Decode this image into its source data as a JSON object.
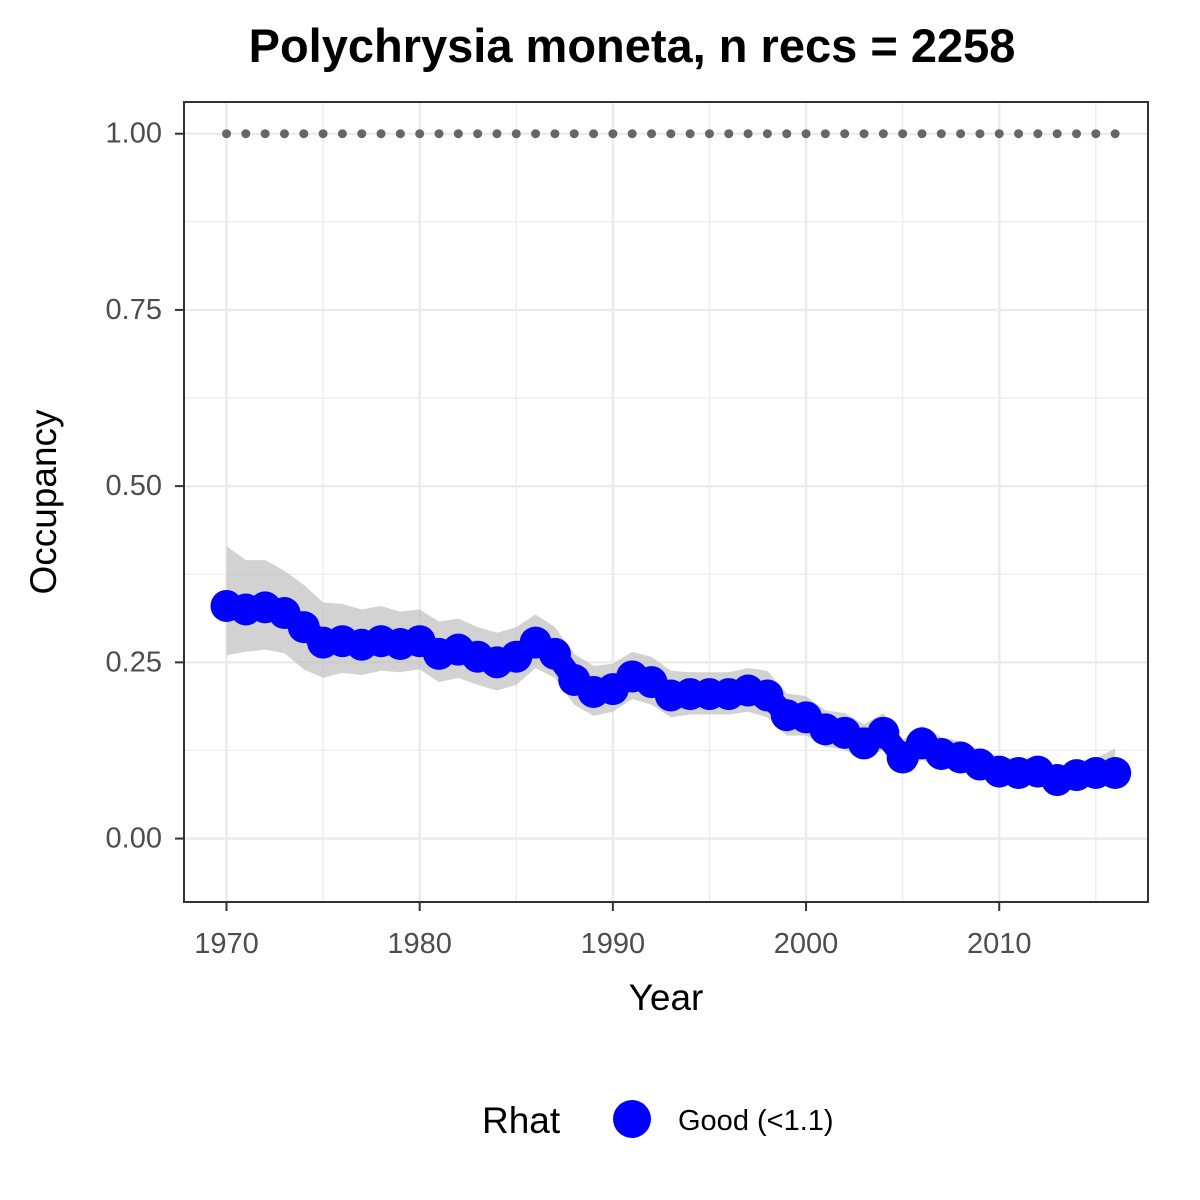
{
  "chart_data": {
    "type": "line",
    "title": "Polychrysia moneta, n recs = 2258",
    "xlabel": "Year",
    "ylabel": "Occupancy",
    "xlim": [
      1967.8,
      2017.7
    ],
    "ylim": [
      -0.09,
      1.045
    ],
    "x_ticks": [
      "1970",
      "1980",
      "1990",
      "2000",
      "2010"
    ],
    "y_ticks": [
      "0.00",
      "0.25",
      "0.50",
      "0.75",
      "1.00"
    ],
    "grid": true,
    "legend": {
      "title": "Rhat",
      "position": "bottom",
      "entries": [
        "Good (<1.1)"
      ]
    },
    "colors": {
      "series": "#0000ff",
      "ribbon": "#bfbfbf",
      "reference": "#666666",
      "panel_border": "#333333",
      "grid": "#ebebeb"
    },
    "series": [
      {
        "name": "Good (<1.1)",
        "x": [
          1970,
          1971,
          1972,
          1973,
          1974,
          1975,
          1976,
          1977,
          1978,
          1979,
          1980,
          1981,
          1982,
          1983,
          1984,
          1985,
          1986,
          1987,
          1988,
          1989,
          1990,
          1991,
          1992,
          1993,
          1994,
          1995,
          1996,
          1997,
          1998,
          1999,
          2000,
          2001,
          2002,
          2003,
          2004,
          2005,
          2006,
          2007,
          2008,
          2009,
          2010,
          2011,
          2012,
          2013,
          2014,
          2015,
          2016
        ],
        "y": [
          0.33,
          0.325,
          0.328,
          0.32,
          0.3,
          0.278,
          0.28,
          0.275,
          0.28,
          0.276,
          0.28,
          0.262,
          0.268,
          0.258,
          0.25,
          0.258,
          0.278,
          0.262,
          0.225,
          0.208,
          0.212,
          0.23,
          0.222,
          0.203,
          0.205,
          0.205,
          0.205,
          0.21,
          0.203,
          0.175,
          0.172,
          0.155,
          0.15,
          0.135,
          0.15,
          0.115,
          0.135,
          0.12,
          0.115,
          0.105,
          0.095,
          0.093,
          0.095,
          0.083,
          0.09,
          0.093,
          0.093
        ],
        "lower": [
          0.26,
          0.265,
          0.268,
          0.263,
          0.24,
          0.228,
          0.235,
          0.232,
          0.238,
          0.236,
          0.24,
          0.222,
          0.228,
          0.218,
          0.21,
          0.218,
          0.242,
          0.228,
          0.19,
          0.174,
          0.18,
          0.198,
          0.19,
          0.172,
          0.176,
          0.176,
          0.176,
          0.18,
          0.172,
          0.146,
          0.146,
          0.13,
          0.126,
          0.112,
          0.126,
          0.094,
          0.112,
          0.1,
          0.096,
          0.087,
          0.078,
          0.077,
          0.079,
          0.068,
          0.074,
          0.076,
          0.074
        ],
        "upper": [
          0.415,
          0.395,
          0.395,
          0.38,
          0.36,
          0.335,
          0.333,
          0.325,
          0.33,
          0.322,
          0.325,
          0.308,
          0.312,
          0.3,
          0.292,
          0.3,
          0.318,
          0.3,
          0.262,
          0.245,
          0.248,
          0.265,
          0.258,
          0.238,
          0.236,
          0.236,
          0.236,
          0.242,
          0.238,
          0.206,
          0.202,
          0.182,
          0.178,
          0.162,
          0.178,
          0.14,
          0.16,
          0.144,
          0.138,
          0.126,
          0.116,
          0.113,
          0.115,
          0.102,
          0.11,
          0.114,
          0.128
        ]
      }
    ],
    "reference_line": {
      "y": 1.0,
      "x_from": 1970,
      "x_to": 2016
    }
  }
}
